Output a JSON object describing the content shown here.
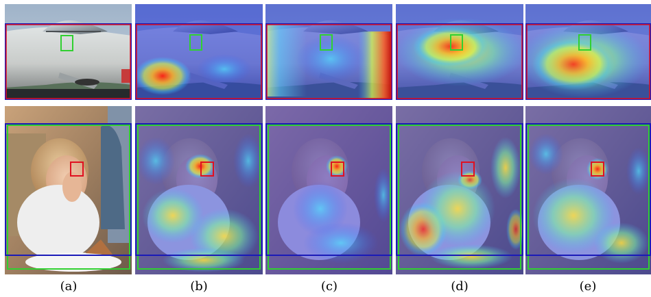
{
  "captions": [
    "(a)",
    "(b)",
    "(c)",
    "(d)",
    "(e)"
  ],
  "boxes": {
    "red": "#e01020",
    "green": "#30d030",
    "blue": "#1a1ab8"
  }
}
